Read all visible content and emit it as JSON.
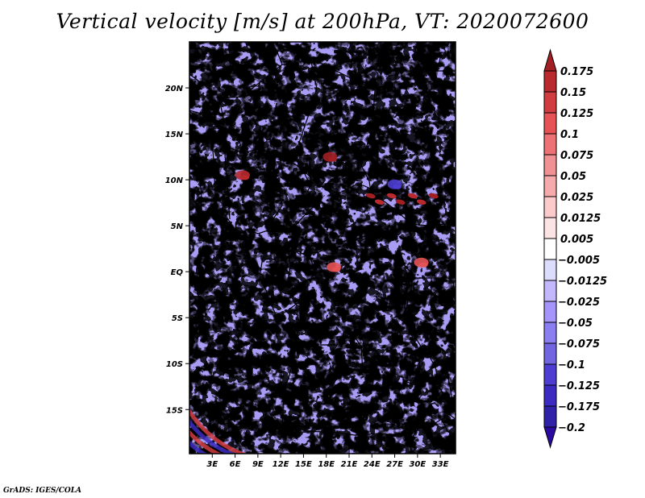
{
  "title": "Vertical velocity [m/s] at 200hPa, VT: 2020072600",
  "footer": "GrADS: IGES/COLA",
  "map": {
    "projection": "latlon",
    "lon_range": [
      0,
      35
    ],
    "lat_range": [
      -19.8,
      25
    ],
    "variable": "Vertical velocity",
    "units": "m/s",
    "level": "200hPa",
    "valid_time": "2020072600",
    "y_ticks": [
      {
        "lat": 20,
        "label": "20N"
      },
      {
        "lat": 15,
        "label": "15N"
      },
      {
        "lat": 10,
        "label": "10N"
      },
      {
        "lat": 5,
        "label": "5N"
      },
      {
        "lat": 0,
        "label": "EQ"
      },
      {
        "lat": -5,
        "label": "5S"
      },
      {
        "lat": -10,
        "label": "10S"
      },
      {
        "lat": -15,
        "label": "15S"
      }
    ],
    "x_ticks": [
      {
        "lon": 3,
        "label": "3E"
      },
      {
        "lon": 6,
        "label": "6E"
      },
      {
        "lon": 9,
        "label": "9E"
      },
      {
        "lon": 12,
        "label": "12E"
      },
      {
        "lon": 15,
        "label": "15E"
      },
      {
        "lon": 18,
        "label": "18E"
      },
      {
        "lon": 21,
        "label": "21E"
      },
      {
        "lon": 24,
        "label": "24E"
      },
      {
        "lon": 27,
        "label": "27E"
      },
      {
        "lon": 30,
        "label": "30E"
      },
      {
        "lon": 33,
        "label": "33E"
      }
    ],
    "features": [
      {
        "name": "strong-ascent-chad",
        "lon": 18.5,
        "lat": 12.5,
        "value": 0.175
      },
      {
        "name": "ascent-band-south-sudan",
        "lon": 28,
        "lat": 8,
        "value": 0.15
      },
      {
        "name": "ascent-nigeria",
        "lon": 7,
        "lat": 10.5,
        "value": 0.15
      },
      {
        "name": "ascent-congo-basin",
        "lon": 19,
        "lat": 0.5,
        "value": 0.1
      },
      {
        "name": "ascent-lake-victoria",
        "lon": 30.5,
        "lat": 1,
        "value": 0.1
      },
      {
        "name": "descent-sudan",
        "lon": 27,
        "lat": 9.5,
        "value": -0.125
      },
      {
        "name": "wave-train-southwest",
        "lon": 2,
        "lat": -16,
        "value": 0.125
      }
    ]
  },
  "colorbar": {
    "labels": [
      "0.175",
      "0.15",
      "0.125",
      "0.1",
      "0.075",
      "0.05",
      "0.025",
      "0.0125",
      "0.005",
      "-0.005",
      "-0.0125",
      "-0.025",
      "-0.05",
      "-0.075",
      "-0.1",
      "-0.125",
      "-0.175",
      "-0.2"
    ],
    "levels": [
      0.175,
      0.15,
      0.125,
      0.1,
      0.075,
      0.05,
      0.025,
      0.0125,
      0.005,
      -0.005,
      -0.0125,
      -0.025,
      -0.05,
      -0.075,
      -0.1,
      -0.125,
      -0.175,
      -0.2
    ],
    "colors": [
      "#a21f23",
      "#b82a2e",
      "#d13c40",
      "#e65356",
      "#ed7275",
      "#f09194",
      "#f5aaab",
      "#fbcacb",
      "#fde4e4",
      "#ffffff",
      "#dcdcfc",
      "#c3b8fb",
      "#a595fa",
      "#8b7ef0",
      "#7266e0",
      "#4d3dd0",
      "#3b2bc0",
      "#3022a8",
      "#2a0aa0"
    ]
  }
}
